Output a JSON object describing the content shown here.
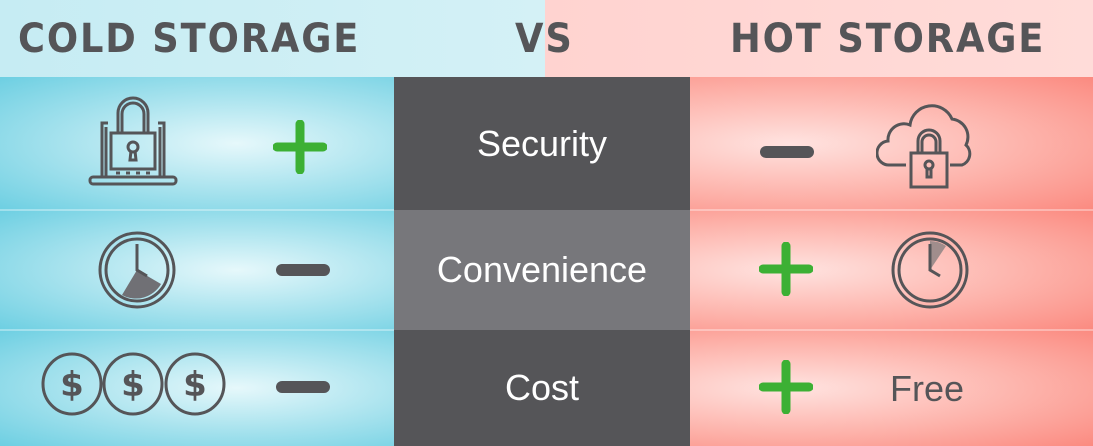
{
  "header": {
    "left_title": "COLD STORAGE",
    "vs": "VS",
    "right_title": "HOT STORAGE"
  },
  "rows": [
    {
      "label": "Security",
      "cold": "plus",
      "hot": "minus"
    },
    {
      "label": "Convenience",
      "cold": "minus",
      "hot": "plus"
    },
    {
      "label": "Cost",
      "cold": "minus",
      "hot": "plus",
      "hot_text": "Free"
    }
  ],
  "colors": {
    "plus": "#3cb034",
    "minus": "#555558",
    "cold": "#6dcfe2",
    "hot": "#fb8a80",
    "center_dark": "#555558",
    "center_light": "#77777b"
  },
  "icons": {
    "cold_security": "laptop-lock-icon",
    "hot_security": "cloud-lock-icon",
    "convenience": "clock-icon",
    "cost": "dollar-coins-icon"
  }
}
